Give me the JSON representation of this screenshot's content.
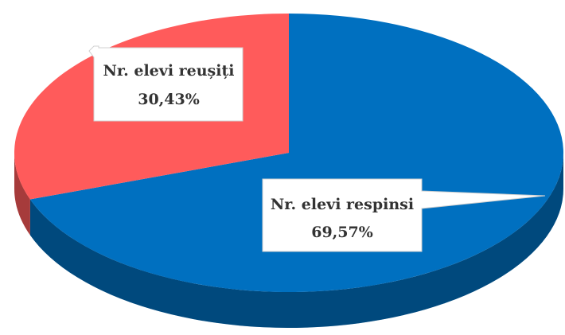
{
  "chart_data": {
    "type": "pie",
    "categories": [
      "Nr. elevi respinsi",
      "Nr. elevi reușiți"
    ],
    "values": [
      69.57,
      30.43
    ],
    "value_labels": [
      "69,57%",
      "30,43%"
    ],
    "colors": [
      "#0070c0",
      "#ff5b5b"
    ]
  }
}
